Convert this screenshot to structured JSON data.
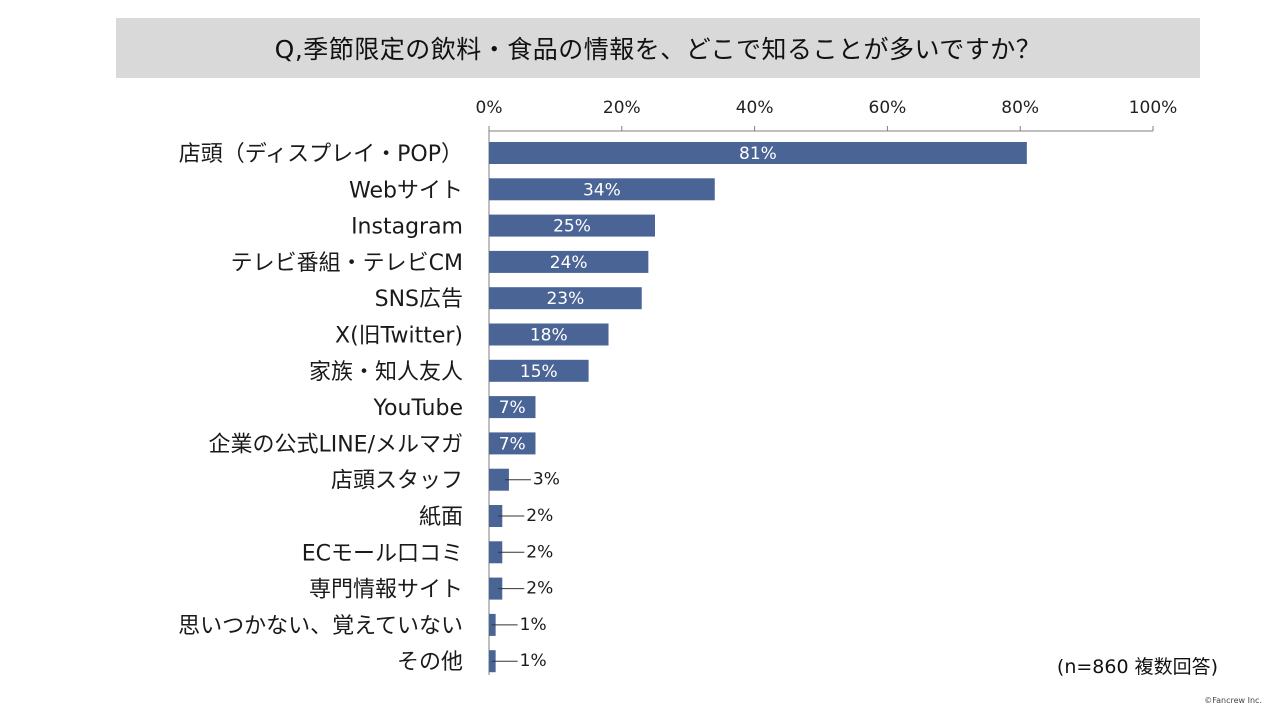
{
  "chart_data": {
    "type": "bar",
    "orientation": "horizontal",
    "title": "Q,季節限定の飲料・食品の情報を、どこで知ることが多いですか？",
    "categories": [
      "店頭（ディスプレイ・POP）",
      "Webサイト",
      "Instagram",
      "テレビ番組・テレビCM",
      "SNS広告",
      "X(旧Twitter)",
      "家族・知人友人",
      "YouTube",
      "企業の公式LINE/メルマガ",
      "店頭スタッフ",
      "紙面",
      "ECモール口コミ",
      "専門情報サイト",
      "思いつかない、覚えていない",
      "その他"
    ],
    "values": [
      81,
      34,
      25,
      24,
      23,
      18,
      15,
      7,
      7,
      3,
      2,
      2,
      2,
      1,
      1
    ],
    "value_labels": [
      "81%",
      "34%",
      "25%",
      "24%",
      "23%",
      "18%",
      "15%",
      "7%",
      "7%",
      "3%",
      "2%",
      "2%",
      "2%",
      "1%",
      "1%"
    ],
    "xlim": [
      0,
      100
    ],
    "xticks": [
      "0%",
      "20%",
      "40%",
      "60%",
      "80%",
      "100%"
    ],
    "bar_color": "#4a6496",
    "grid": false,
    "legend": "none"
  },
  "note": "(n=860 複数回答)",
  "copyright": "©Fancrew Inc."
}
